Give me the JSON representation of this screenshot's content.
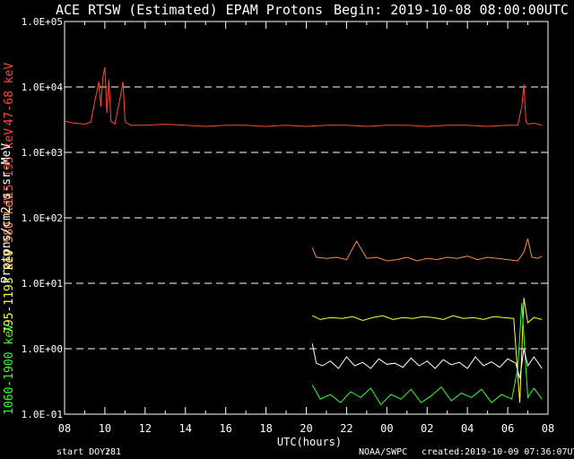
{
  "header": {
    "title": "ACE RTSW (Estimated) EPAM Protons",
    "begin": "Begin: 2019-10-08 08:00:00UTC"
  },
  "footer": {
    "start_doy_label": "start DOY:",
    "start_doy_value": "281",
    "source": "NOAA/SWPC",
    "created": "created:2019-10-09 07:36:07UTC"
  },
  "colors": {
    "background": "#000000",
    "frame": "#ffffff",
    "ch1": "#ff4a2a",
    "ch2": "#ff8c3a",
    "ch3": "#ffff33",
    "ch4": "#ffffff",
    "ch5": "#33ff33"
  },
  "chart_data": {
    "type": "line",
    "title": "ACE RTSW (Estimated) EPAM Protons",
    "xlabel": "UTC(hours)",
    "ylabel": "Protons/cm2-s-sr-MeV",
    "yscale": "log",
    "ylim": [
      0.1,
      100000
    ],
    "xlim": [
      8,
      32
    ],
    "grid": "dashed horizontal at each decade",
    "x_ticks": [
      "08",
      "10",
      "12",
      "14",
      "16",
      "18",
      "20",
      "22",
      "00",
      "02",
      "04",
      "06",
      "08"
    ],
    "y_ticks": [
      "1.0E-01",
      "1.0E+00",
      "1.0E+01",
      "1.0E+02",
      "1.0E+03",
      "1.0E+04",
      "1.0E+05"
    ],
    "series": [
      {
        "name": "47-68 keV",
        "color": "#ff4a2a",
        "x": [
          8.0,
          8.5,
          9.0,
          9.3,
          9.5,
          9.7,
          9.8,
          9.9,
          10.0,
          10.1,
          10.2,
          10.3,
          10.5,
          10.8,
          10.9,
          11.0,
          11.1,
          11.3,
          12.0,
          13.0,
          14.0,
          15.0,
          16.0,
          17.0,
          18.0,
          19.0,
          20.0,
          21.0,
          22.0,
          23.0,
          24.0,
          25.0,
          26.0,
          27.0,
          28.0,
          29.0,
          30.0,
          30.5,
          30.7,
          30.8,
          30.9,
          31.0,
          31.3,
          31.7
        ],
        "y": [
          3000,
          2800,
          2700,
          2900,
          6000,
          12000,
          5000,
          14000,
          20000,
          4000,
          13000,
          3000,
          2700,
          8000,
          12000,
          3000,
          2800,
          2600,
          2600,
          2700,
          2600,
          2500,
          2600,
          2600,
          2500,
          2600,
          2500,
          2600,
          2600,
          2500,
          2600,
          2600,
          2500,
          2600,
          2600,
          2500,
          2600,
          2600,
          5000,
          11000,
          3000,
          2700,
          2800,
          2600
        ]
      },
      {
        "name": "115-195 keV",
        "color": "#ff4a2a",
        "x": [],
        "y": []
      },
      {
        "name": "310-580 keV",
        "color": "#ff8c3a",
        "x": [
          20.3,
          20.5,
          21.0,
          21.5,
          22.0,
          22.5,
          23.0,
          23.5,
          24.0,
          24.5,
          25.0,
          25.5,
          26.0,
          26.5,
          27.0,
          27.5,
          28.0,
          28.5,
          29.0,
          29.5,
          30.0,
          30.5,
          30.8,
          31.0,
          31.2,
          31.5,
          31.7
        ],
        "y": [
          35,
          25,
          24,
          25,
          23,
          44,
          24,
          25,
          22,
          23,
          25,
          22,
          24,
          23,
          25,
          24,
          26,
          23,
          25,
          24,
          23,
          22,
          30,
          48,
          25,
          24,
          26
        ]
      },
      {
        "name": "795-1193 keV",
        "color": "#ffff33",
        "x": [
          20.3,
          20.7,
          21.2,
          21.8,
          22.3,
          22.8,
          23.3,
          23.8,
          24.3,
          24.8,
          25.3,
          25.8,
          26.3,
          26.8,
          27.3,
          27.8,
          28.3,
          28.8,
          29.3,
          29.8,
          30.3,
          30.6,
          30.8,
          31.0,
          31.3,
          31.7
        ],
        "y": [
          3.2,
          2.8,
          3.0,
          2.9,
          3.1,
          2.7,
          3.0,
          3.2,
          2.8,
          3.0,
          2.9,
          3.1,
          3.0,
          2.8,
          3.2,
          2.9,
          3.0,
          2.8,
          3.1,
          3.0,
          2.9,
          0.15,
          6.0,
          2.5,
          3.0,
          2.8
        ]
      },
      {
        "name": "1060-1900 keV",
        "color": "#33ff33",
        "x": [
          20.3,
          20.7,
          21.2,
          21.7,
          22.2,
          22.7,
          23.2,
          23.7,
          24.2,
          24.7,
          25.2,
          25.7,
          26.2,
          26.7,
          27.2,
          27.7,
          28.2,
          28.7,
          29.2,
          29.7,
          30.2,
          30.5,
          30.7,
          31.0,
          31.3,
          31.7
        ],
        "y": [
          0.28,
          0.17,
          0.2,
          0.15,
          0.22,
          0.18,
          0.25,
          0.14,
          0.2,
          0.17,
          0.24,
          0.15,
          0.19,
          0.26,
          0.16,
          0.21,
          0.18,
          0.24,
          0.15,
          0.2,
          0.17,
          0.5,
          5.0,
          0.18,
          0.25,
          0.17
        ]
      }
    ],
    "white_series": {
      "name": "",
      "color": "#ffffff",
      "x": [
        20.3,
        20.5,
        20.8,
        21.2,
        21.6,
        22.0,
        22.4,
        22.8,
        23.2,
        23.6,
        24.0,
        24.4,
        24.8,
        25.2,
        25.6,
        26.0,
        26.4,
        26.8,
        27.2,
        27.6,
        28.0,
        28.4,
        28.8,
        29.2,
        29.6,
        30.0,
        30.4,
        30.6,
        30.8,
        31.0,
        31.3,
        31.7
      ],
      "y": [
        1.2,
        0.6,
        0.55,
        0.65,
        0.5,
        0.75,
        0.55,
        0.62,
        0.5,
        0.7,
        0.58,
        0.6,
        0.52,
        0.72,
        0.55,
        0.65,
        0.5,
        0.68,
        0.57,
        0.62,
        0.5,
        0.75,
        0.55,
        0.63,
        0.52,
        0.7,
        0.6,
        0.35,
        1.0,
        0.55,
        0.75,
        0.5
      ]
    }
  }
}
